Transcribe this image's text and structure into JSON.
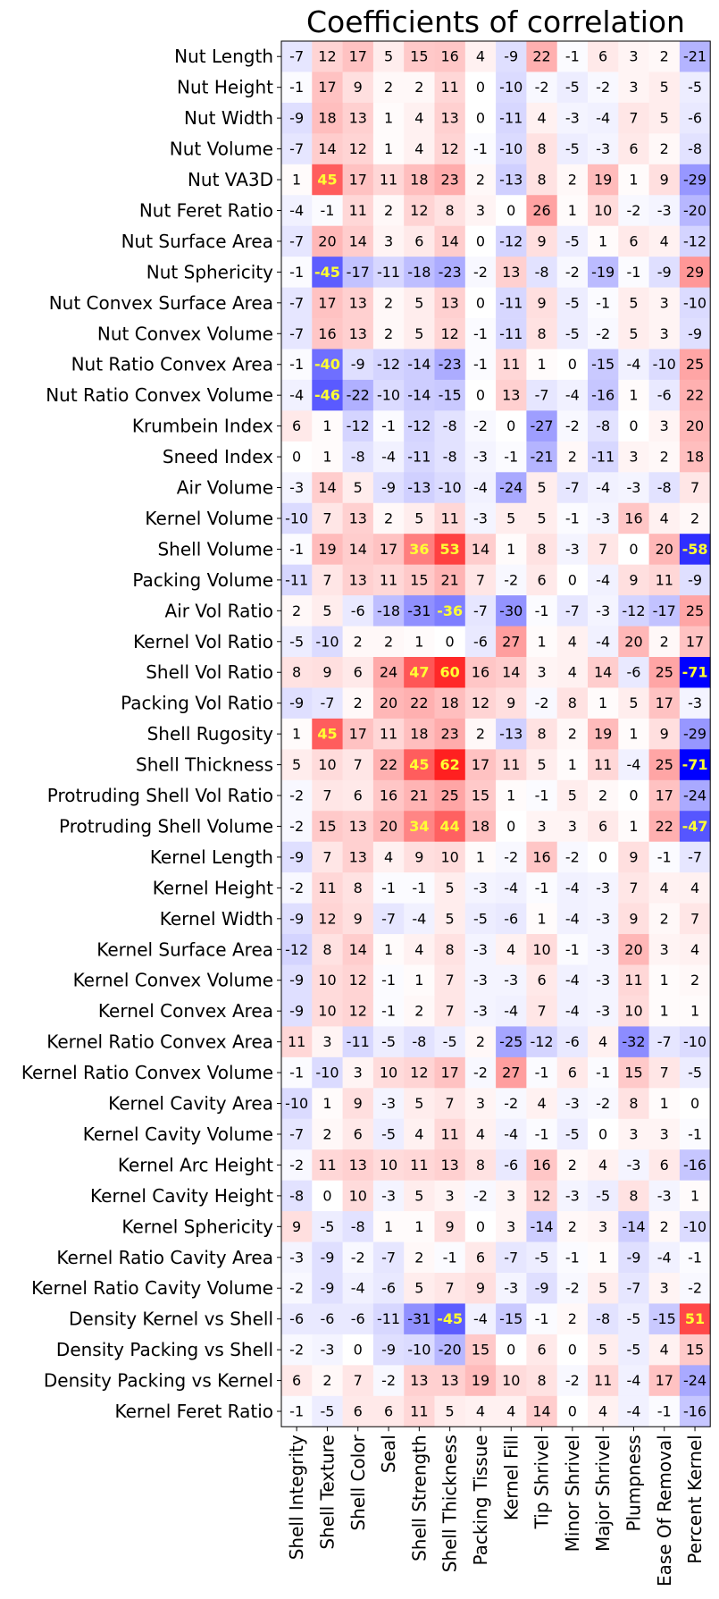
{
  "chart_data": {
    "type": "heatmap",
    "title": "Coefficients of correlation",
    "columns": [
      "Shell Integrity",
      "Shell Texture",
      "Shell Color",
      "Seal",
      "Shell Strength",
      "Shell Thickness",
      "Packing Tissue",
      "Kernel Fill",
      "Tip Shrivel",
      "Minor Shrivel",
      "Major Shrivel",
      "Plumpness",
      "Ease Of Removal",
      "Percent Kernel"
    ],
    "rows": [
      "Nut Length",
      "Nut Height",
      "Nut Width",
      "Nut Volume",
      "Nut VA3D",
      "Nut Feret Ratio",
      "Nut Surface Area",
      "Nut Sphericity",
      "Nut Convex Surface Area",
      "Nut Convex Volume",
      "Nut Ratio Convex Area",
      "Nut Ratio Convex Volume",
      "Krumbein Index",
      "Sneed Index",
      "Air Volume",
      "Kernel Volume",
      "Shell Volume",
      "Packing Volume",
      "Air Vol Ratio",
      "Kernel Vol Ratio",
      "Shell Vol Ratio",
      "Packing Vol Ratio",
      "Shell Rugosity",
      "Shell Thickness",
      "Protruding Shell Vol Ratio",
      "Protruding Shell Volume",
      "Kernel Length",
      "Kernel Height",
      "Kernel Width",
      "Kernel Surface Area",
      "Kernel Convex Volume",
      "Kernel Convex Area",
      "Kernel Ratio Convex Area",
      "Kernel Ratio Convex Volume",
      "Kernel Cavity Area",
      "Kernel Cavity Volume",
      "Kernel Arc Height",
      "Kernel Cavity Height",
      "Kernel Sphericity",
      "Kernel Ratio Cavity Area",
      "Kernel Ratio Cavity Volume",
      "Density Kernel vs Shell",
      "Density Packing vs Shell",
      "Density Packing vs Kernel",
      "Kernel Feret Ratio"
    ],
    "values": [
      [
        -7,
        12,
        17,
        5,
        15,
        16,
        4,
        -9,
        22,
        -1,
        6,
        3,
        2,
        -21
      ],
      [
        -1,
        17,
        9,
        2,
        2,
        11,
        0,
        -10,
        -2,
        -5,
        -2,
        3,
        5,
        -5
      ],
      [
        -9,
        18,
        13,
        1,
        4,
        13,
        0,
        -11,
        4,
        -3,
        -4,
        7,
        5,
        -6
      ],
      [
        -7,
        14,
        12,
        1,
        4,
        12,
        -1,
        -10,
        8,
        -5,
        -3,
        6,
        2,
        -8
      ],
      [
        1,
        45,
        17,
        11,
        18,
        23,
        2,
        -13,
        8,
        2,
        19,
        1,
        9,
        -29
      ],
      [
        -4,
        -1,
        11,
        2,
        12,
        8,
        3,
        0,
        26,
        1,
        10,
        -2,
        -3,
        -20
      ],
      [
        -7,
        20,
        14,
        3,
        6,
        14,
        0,
        -12,
        9,
        -5,
        1,
        6,
        4,
        -12
      ],
      [
        -1,
        -45,
        -17,
        -11,
        -18,
        -23,
        -2,
        13,
        -8,
        -2,
        -19,
        -1,
        -9,
        29
      ],
      [
        -7,
        17,
        13,
        2,
        5,
        13,
        0,
        -11,
        9,
        -5,
        -1,
        5,
        3,
        -10
      ],
      [
        -7,
        16,
        13,
        2,
        5,
        12,
        -1,
        -11,
        8,
        -5,
        -2,
        5,
        3,
        -9
      ],
      [
        -1,
        -40,
        -9,
        -12,
        -14,
        -23,
        -1,
        11,
        1,
        0,
        -15,
        -4,
        -10,
        25
      ],
      [
        -4,
        -46,
        -22,
        -10,
        -14,
        -15,
        0,
        13,
        -7,
        -4,
        -16,
        1,
        -6,
        22
      ],
      [
        6,
        1,
        -12,
        -1,
        -12,
        -8,
        -2,
        0,
        -27,
        -2,
        -8,
        0,
        3,
        20
      ],
      [
        0,
        1,
        -8,
        -4,
        -11,
        -8,
        -3,
        -1,
        -21,
        2,
        -11,
        3,
        2,
        18
      ],
      [
        -3,
        14,
        5,
        -9,
        -13,
        -10,
        -4,
        -24,
        5,
        -7,
        -4,
        -3,
        -8,
        7
      ],
      [
        -10,
        7,
        13,
        2,
        5,
        11,
        -3,
        5,
        5,
        -1,
        -3,
        16,
        4,
        2
      ],
      [
        -1,
        19,
        14,
        17,
        36,
        53,
        14,
        1,
        8,
        -3,
        7,
        0,
        20,
        -58
      ],
      [
        -11,
        7,
        13,
        11,
        15,
        21,
        7,
        -2,
        6,
        0,
        -4,
        9,
        11,
        -9
      ],
      [
        2,
        5,
        -6,
        -18,
        -31,
        -36,
        -7,
        -30,
        -1,
        -7,
        -3,
        -12,
        -17,
        25
      ],
      [
        -5,
        -10,
        2,
        2,
        1,
        0,
        -6,
        27,
        1,
        4,
        -4,
        20,
        2,
        17
      ],
      [
        8,
        9,
        6,
        24,
        47,
        60,
        16,
        14,
        3,
        4,
        14,
        -6,
        25,
        -71
      ],
      [
        -9,
        -7,
        2,
        20,
        22,
        18,
        12,
        9,
        -2,
        8,
        1,
        5,
        17,
        -3
      ],
      [
        1,
        45,
        17,
        11,
        18,
        23,
        2,
        -13,
        8,
        2,
        19,
        1,
        9,
        -29
      ],
      [
        5,
        10,
        7,
        22,
        45,
        62,
        17,
        11,
        5,
        1,
        11,
        -4,
        25,
        -71
      ],
      [
        -2,
        7,
        6,
        16,
        21,
        25,
        15,
        1,
        -1,
        5,
        2,
        0,
        17,
        -24
      ],
      [
        -2,
        15,
        13,
        20,
        34,
        44,
        18,
        0,
        3,
        3,
        6,
        1,
        22,
        -47
      ],
      [
        -9,
        7,
        13,
        4,
        9,
        10,
        1,
        -2,
        16,
        -2,
        0,
        9,
        -1,
        -7
      ],
      [
        -2,
        11,
        8,
        -1,
        -1,
        5,
        -3,
        -4,
        -1,
        -4,
        -3,
        7,
        4,
        4
      ],
      [
        -9,
        12,
        9,
        -7,
        -4,
        5,
        -5,
        -6,
        1,
        -4,
        -3,
        9,
        2,
        7
      ],
      [
        -12,
        8,
        14,
        1,
        4,
        8,
        -3,
        4,
        10,
        -1,
        -3,
        20,
        3,
        4
      ],
      [
        -9,
        10,
        12,
        -1,
        1,
        7,
        -3,
        -3,
        6,
        -4,
        -3,
        11,
        1,
        2
      ],
      [
        -9,
        10,
        12,
        -1,
        2,
        7,
        -3,
        -4,
        7,
        -4,
        -3,
        10,
        1,
        1
      ],
      [
        11,
        3,
        -11,
        -5,
        -8,
        -5,
        2,
        -25,
        -12,
        -6,
        4,
        -32,
        -7,
        -10
      ],
      [
        -1,
        -10,
        3,
        10,
        12,
        17,
        -2,
        27,
        -1,
        6,
        -1,
        15,
        7,
        -5
      ],
      [
        -10,
        1,
        9,
        -3,
        5,
        7,
        3,
        -2,
        4,
        -3,
        -2,
        8,
        1,
        0
      ],
      [
        -7,
        2,
        6,
        -5,
        4,
        11,
        4,
        -4,
        -1,
        -5,
        0,
        3,
        3,
        -1
      ],
      [
        -2,
        11,
        13,
        10,
        11,
        13,
        8,
        -6,
        16,
        2,
        4,
        -3,
        6,
        -16
      ],
      [
        -8,
        0,
        10,
        -3,
        5,
        3,
        -2,
        3,
        12,
        -3,
        -5,
        8,
        -3,
        1
      ],
      [
        9,
        -5,
        -8,
        1,
        1,
        9,
        0,
        3,
        -14,
        2,
        3,
        -14,
        2,
        -10
      ],
      [
        -3,
        -9,
        -2,
        -7,
        2,
        -1,
        6,
        -7,
        -5,
        -1,
        1,
        -9,
        -4,
        -1
      ],
      [
        -2,
        -9,
        -4,
        -6,
        5,
        7,
        9,
        -3,
        -9,
        -2,
        5,
        -7,
        3,
        -2
      ],
      [
        -6,
        -6,
        -6,
        -11,
        -31,
        -45,
        -4,
        -15,
        -1,
        2,
        -8,
        -5,
        -15,
        51
      ],
      [
        -2,
        -3,
        0,
        -9,
        -10,
        -20,
        15,
        0,
        6,
        0,
        5,
        -5,
        4,
        15
      ],
      [
        6,
        2,
        7,
        -2,
        13,
        13,
        19,
        10,
        8,
        -2,
        11,
        -4,
        17,
        -24
      ],
      [
        -1,
        -5,
        6,
        6,
        11,
        5,
        4,
        4,
        14,
        0,
        4,
        -4,
        -1,
        -16
      ]
    ],
    "color_scale": "bwr",
    "vmin": -71,
    "vmax": 71,
    "highlight_threshold": 34,
    "highlight_text_color": "#ffff33",
    "normal_text_color": "#000000"
  }
}
